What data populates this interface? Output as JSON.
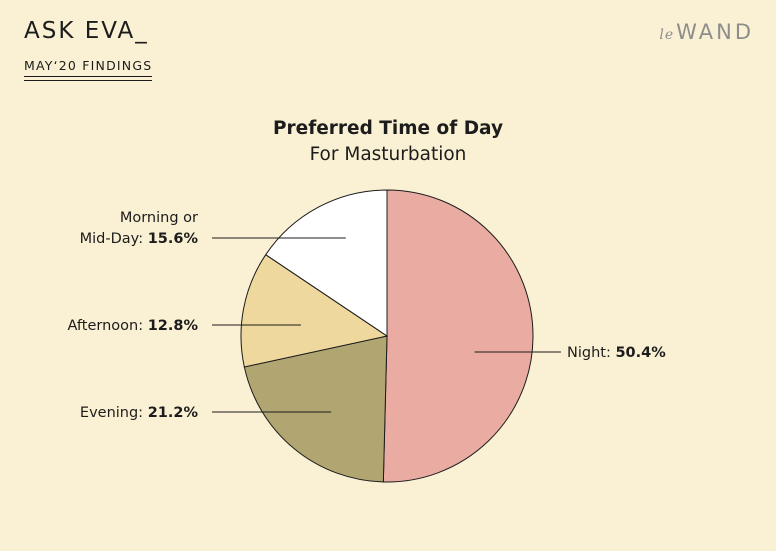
{
  "header": {
    "brand": "ASK EVA_",
    "subtitle": "MAY‘20 FINDINGS",
    "logo_prefix": "le",
    "logo_main": "WAND"
  },
  "chart_data": {
    "type": "pie",
    "title": "Preferred Time of Day",
    "subtitle": "For Masturbation",
    "slices": [
      {
        "label": "Night",
        "value": 50.4,
        "value_text": "50.4%",
        "color": "#eaaca2"
      },
      {
        "label": "Evening",
        "value": 21.2,
        "value_text": "21.2%",
        "color": "#b1a672"
      },
      {
        "label": "Afternoon",
        "value": 12.8,
        "value_text": "12.8%",
        "color": "#eed89d"
      },
      {
        "label_lines": [
          "Morning or",
          "Mid-Day"
        ],
        "label": "Morning or Mid-Day",
        "value": 15.6,
        "value_text": "15.6%",
        "color": "#ffffff"
      }
    ],
    "start_angle": "12 o'clock",
    "direction": "clockwise",
    "legend": "none (callout labels)"
  }
}
